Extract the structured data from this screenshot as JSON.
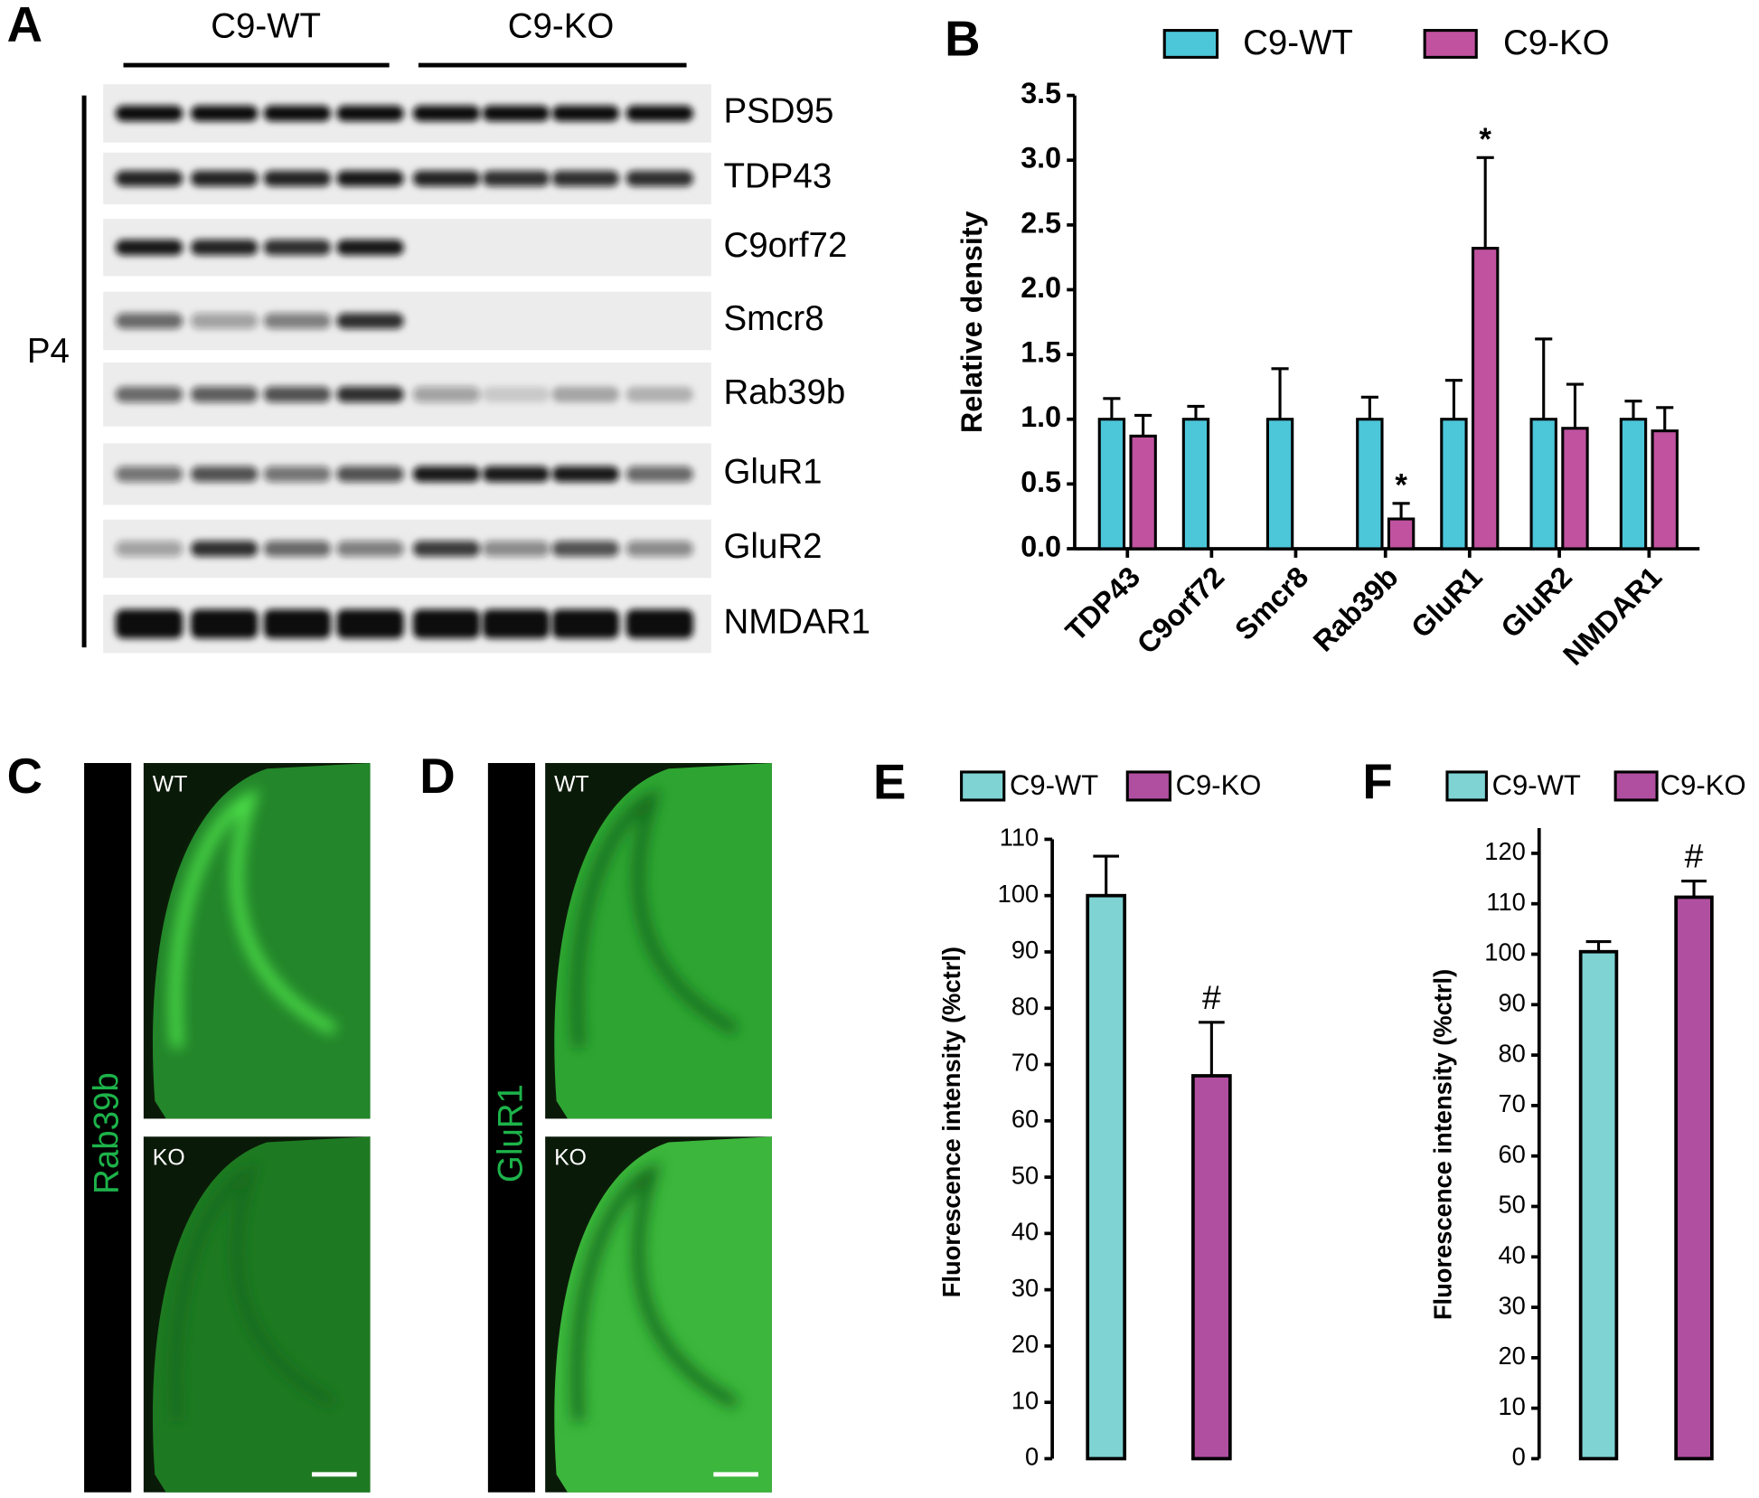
{
  "panel_labels": [
    "A",
    "B",
    "C",
    "D",
    "E",
    "F"
  ],
  "blot": {
    "groups": [
      "C9-WT",
      "C9-KO"
    ],
    "proteins": [
      "PSD95",
      "TDP43",
      "C9orf72",
      "Smcr8",
      "Rab39b",
      "GluR1",
      "GluR2",
      "NMDAR1"
    ],
    "timepoint": "P4"
  },
  "images": [
    {
      "stain": "Rab39b",
      "conditions": [
        "WT",
        "KO"
      ]
    },
    {
      "stain": "GluR1",
      "conditions": [
        "WT",
        "KO"
      ]
    }
  ],
  "chart_data": [
    {
      "type": "bar",
      "ylabel": "Relative density",
      "legend": "top",
      "categories": [
        "TDP43",
        "C9orf72",
        "Smcr8",
        "Rab39b",
        "GluR1",
        "GluR2",
        "NMDAR1"
      ],
      "series": [
        {
          "name": "C9-WT",
          "color": "#4cc6d9",
          "values": [
            1,
            1,
            1,
            1,
            1,
            1,
            1
          ],
          "errors": [
            0.16,
            0.1,
            0.39,
            0.17,
            0.3,
            0.62,
            0.14
          ]
        },
        {
          "name": "C9-KO",
          "color": "#c052a0",
          "values": [
            0.87,
            null,
            null,
            0.23,
            2.32,
            0.93,
            0.91
          ],
          "errors": [
            0.16,
            null,
            null,
            0.12,
            0.7,
            0.34,
            0.18
          ]
        }
      ],
      "annotations": [
        {
          "text": "*",
          "category": "Rab39b",
          "series": "C9-KO"
        },
        {
          "text": "*",
          "category": "GluR1",
          "series": "C9-KO"
        }
      ],
      "ylim": [
        0,
        3.5
      ],
      "yticks": [
        {
          "value": 0,
          "label": "0.0"
        },
        0.5,
        {
          "value": 1,
          "label": "1.0"
        },
        1.5,
        {
          "value": 2,
          "label": "2.0"
        },
        2.5,
        {
          "value": 3,
          "label": "3.0"
        },
        3.5
      ]
    },
    {
      "type": "bar",
      "ylabel": "Fluorescence intensity (%ctrl)",
      "legend": "top",
      "categories": [
        null,
        null
      ],
      "series": [
        {
          "name": "C9-WT",
          "color": "#7fd3d3",
          "values": [
            100,
            null
          ],
          "errors": [
            7,
            null
          ]
        },
        {
          "name": "C9-KO",
          "color": "#b04fa0",
          "values": [
            null,
            68
          ],
          "errors": [
            null,
            9.5
          ]
        }
      ],
      "annotations": [
        {
          "text": "#",
          "series": "C9-KO"
        }
      ],
      "ylim": [
        0,
        110
      ],
      "yticks": [
        0,
        10,
        20,
        30,
        40,
        50,
        60,
        70,
        80,
        90,
        100,
        110
      ]
    },
    {
      "type": "bar",
      "ylabel": "Fluorescence intensity (%ctrl)",
      "legend": "top",
      "categories": [
        null,
        null
      ],
      "series": [
        {
          "name": "C9-WT",
          "color": "#7fd3d3",
          "values": [
            100.5,
            null
          ],
          "errors": [
            2,
            null
          ]
        },
        {
          "name": "C9-KO",
          "color": "#b04fa0",
          "values": [
            null,
            111.3
          ],
          "errors": [
            null,
            3.2
          ]
        }
      ],
      "annotations": [
        {
          "text": "#",
          "series": "C9-KO"
        }
      ],
      "ylim": [
        0,
        125
      ],
      "yticks": [
        0,
        10,
        20,
        30,
        40,
        50,
        60,
        70,
        80,
        90,
        100,
        110,
        120
      ]
    }
  ]
}
